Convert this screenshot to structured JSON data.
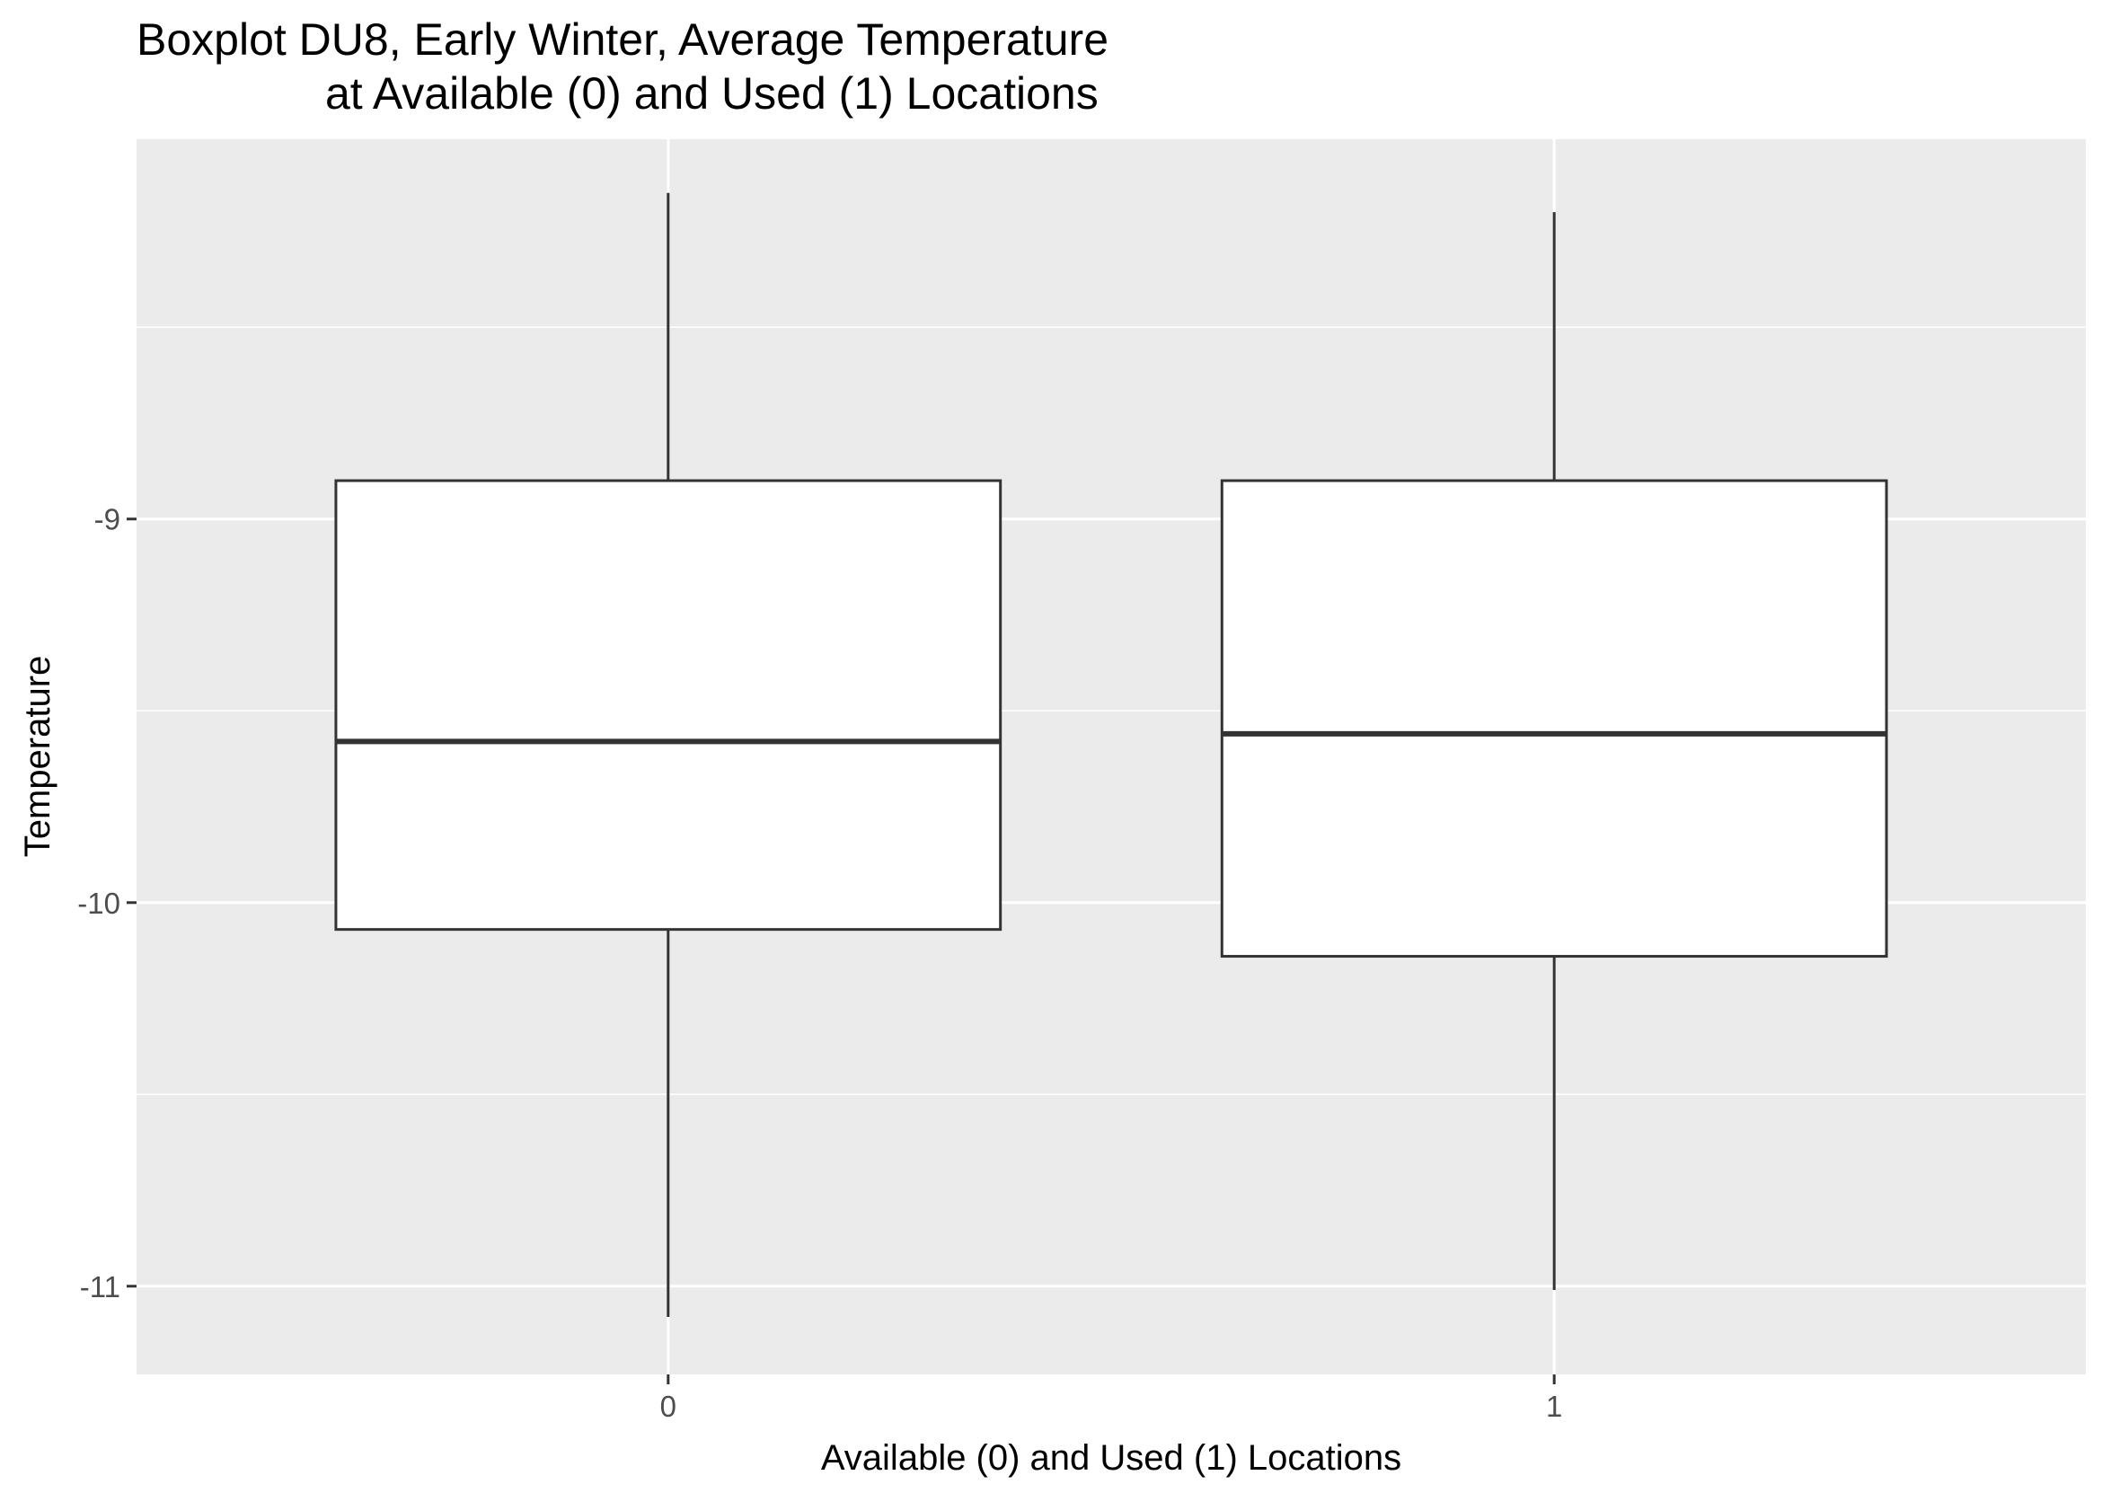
{
  "chart_data": {
    "type": "boxplot",
    "title_lines": [
      "Boxplot DU8, Early Winter, Average Temperature",
      "at Available (0) and Used (1) Locations"
    ],
    "xlabel": "Available (0) and Used (1) Locations",
    "ylabel": "Temperature",
    "categories": [
      "0",
      "1"
    ],
    "boxes": [
      {
        "category": "0",
        "whisker_low": -11.08,
        "q1": -10.07,
        "median": -9.58,
        "q3": -8.9,
        "whisker_high": -8.15
      },
      {
        "category": "1",
        "whisker_low": -11.01,
        "q1": -10.14,
        "median": -9.56,
        "q3": -8.9,
        "whisker_high": -8.2
      }
    ],
    "y_ticks": [
      -9,
      -10,
      -11
    ],
    "y_tick_labels": [
      "-9",
      "-10",
      "-11"
    ],
    "ylim": [
      -11.23,
      -8.01
    ],
    "grid": true,
    "colors": {
      "panel": "#ebebeb",
      "grid": "#ffffff",
      "box_fill": "#ffffff",
      "box_line": "#333333",
      "tick_text": "#4d4d4d"
    }
  }
}
